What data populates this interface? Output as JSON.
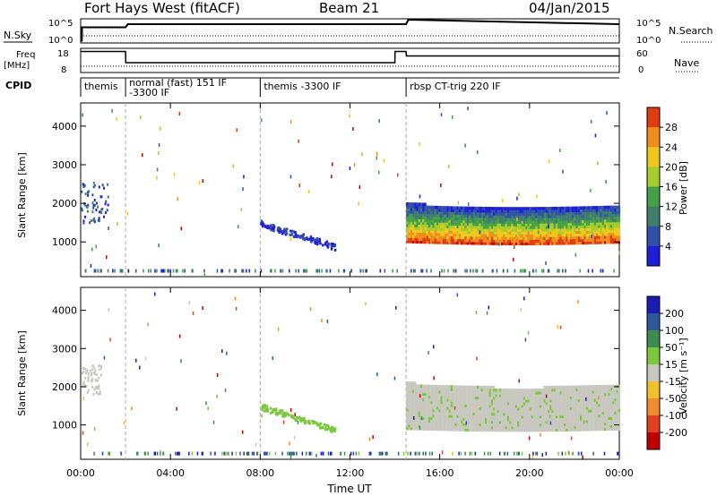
{
  "header": {
    "station": "Fort Hays West (fitACF)",
    "beam": "Beam 21",
    "date": "04/Jan/2015"
  },
  "panels": {
    "nsky_label": "N.Sky",
    "nsearch_label": "N.Search",
    "noise_ticks": [
      "10^5",
      "10^0"
    ],
    "freq_label_1": "Freq",
    "freq_label_2": "[MHz]",
    "freq_ticks": [
      "18",
      "8"
    ],
    "nave_label": "Nave",
    "nave_ticks": [
      "60",
      "0"
    ],
    "cpid_label": "CPID",
    "cpid_segments": [
      {
        "label": "themis",
        "start_h": 0.0,
        "end_h": 2.0
      },
      {
        "label": "normal (fast) 151 IF",
        "label2": "-3300 IF",
        "start_h": 2.0,
        "end_h": 8.0
      },
      {
        "label": "themis -3300 IF",
        "start_h": 8.0,
        "end_h": 14.5
      },
      {
        "label": "rbsp CT-trig 220 IF",
        "start_h": 14.5,
        "end_h": 24.0
      }
    ]
  },
  "xaxis": {
    "label": "Time UT",
    "ticks": [
      "00:00",
      "04:00",
      "08:00",
      "12:00",
      "16:00",
      "20:00",
      "00:00"
    ]
  },
  "power_panel": {
    "ylabel": "Slant Range [km]",
    "yticks": [
      "1000",
      "2000",
      "3000",
      "4000"
    ],
    "colorbar_label": "Power [dB]",
    "colorbar_ticks": [
      "4",
      "8",
      "12",
      "16",
      "20",
      "24",
      "28"
    ]
  },
  "velocity_panel": {
    "ylabel": "Slant Range [km]",
    "yticks": [
      "1000",
      "2000",
      "3000",
      "4000"
    ],
    "colorbar_label": "Velocity [m s⁻¹]",
    "colorbar_ticks": [
      "200",
      "100",
      "50",
      "15",
      "-15",
      "-50",
      "-100",
      "-200"
    ]
  },
  "chart_data": [
    {
      "type": "line",
      "panel": "noise",
      "series": [
        {
          "name": "N.Sky",
          "x_h": [
            0.05,
            0.06,
            2.0,
            2.1,
            8.0,
            14.5,
            14.6,
            24.0
          ],
          "values_log10": [
            0.1,
            3.3,
            3.3,
            4.0,
            4.0,
            4.0,
            5.0,
            4.0
          ]
        }
      ],
      "ylim": [
        0,
        5
      ],
      "xlim": [
        0,
        24
      ]
    },
    {
      "type": "line",
      "panel": "frequency",
      "series": [
        {
          "name": "Freq",
          "x_h": [
            0.0,
            2.0,
            2.01,
            14.0,
            14.01,
            14.5,
            14.51,
            24.0
          ],
          "values": [
            17,
            17,
            12,
            12,
            17,
            17,
            15,
            15
          ]
        }
      ],
      "ylim": [
        8,
        18
      ],
      "xlim": [
        0,
        24
      ]
    },
    {
      "type": "heatmap",
      "panel": "power",
      "x_unit": "hours UT",
      "y_unit": "km",
      "xlim": [
        0,
        24
      ],
      "ylim": [
        100,
        4600
      ],
      "zlim": [
        0,
        30
      ],
      "z_unit": "dB",
      "regions": [
        {
          "x": [
            0.0,
            1.2
          ],
          "y": [
            1500,
            2600
          ],
          "z": 6
        },
        {
          "x": [
            8.0,
            11.3
          ],
          "y_start": [
            1500,
            900
          ],
          "width_km": 80,
          "z": 5
        },
        {
          "x": [
            14.5,
            24.0
          ],
          "y_top": 2000,
          "y_bottom": 1000,
          "z": 20
        }
      ]
    },
    {
      "type": "heatmap",
      "panel": "velocity",
      "x_unit": "hours UT",
      "y_unit": "km",
      "xlim": [
        0,
        24
      ],
      "ylim": [
        100,
        4600
      ],
      "zlim": [
        -200,
        200
      ],
      "z_unit": "m/s",
      "regions": [
        {
          "x": [
            0.0,
            0.9
          ],
          "y": [
            1800,
            2600
          ],
          "z": 0
        },
        {
          "x": [
            8.0,
            11.3
          ],
          "y_start": [
            1500,
            900
          ],
          "width_km": 80,
          "z": 40
        },
        {
          "x": [
            14.5,
            24.0
          ],
          "y_top": 2100,
          "y_bottom": 900,
          "z": 0
        }
      ]
    }
  ],
  "colors": {
    "power_scale": [
      "#1e1ed8",
      "#2f52a8",
      "#3f7d6c",
      "#44a046",
      "#a6cc2c",
      "#f0c81c",
      "#f08c1c",
      "#e03c10",
      "#c00000"
    ],
    "velocity_scale": [
      "#1c1cb4",
      "#2e5a9c",
      "#3c8c50",
      "#7cc83c",
      "#c8c8c0",
      "#f0c02c",
      "#f08c2c",
      "#e04020",
      "#c00000"
    ]
  }
}
